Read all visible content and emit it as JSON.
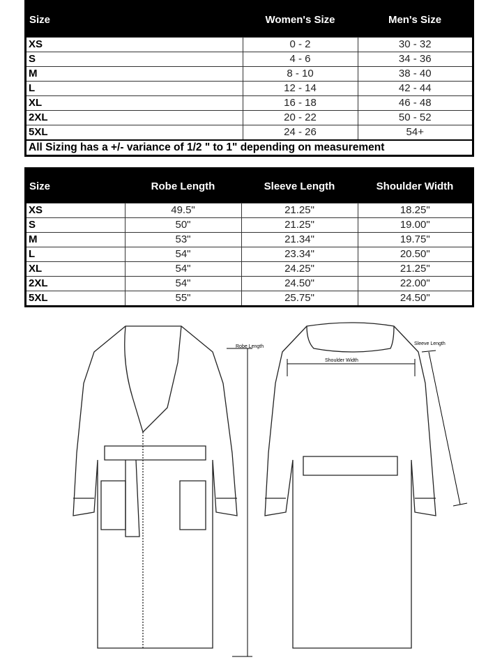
{
  "size_table": {
    "headers": [
      "Size",
      "Women's Size",
      "Men's Size"
    ],
    "rows": [
      [
        "XS",
        "0 - 2",
        "30 - 32"
      ],
      [
        "S",
        "4 - 6",
        "34 - 36"
      ],
      [
        "M",
        "8 - 10",
        "38 - 40"
      ],
      [
        "L",
        "12 - 14",
        "42 - 44"
      ],
      [
        "XL",
        "16 - 18",
        "46 - 48"
      ],
      [
        "2XL",
        "20 - 22",
        "50 - 52"
      ],
      [
        "5XL",
        "24 - 26",
        "54+"
      ]
    ],
    "note": "All Sizing has a +/- variance of  1/2 \" to 1\" depending on measurement"
  },
  "measure_table": {
    "headers": [
      "Size",
      "Robe Length",
      "Sleeve Length",
      "Shoulder Width"
    ],
    "rows": [
      [
        "XS",
        "49.5\"",
        "21.25\"",
        "18.25\""
      ],
      [
        "S",
        "50\"",
        "21.25\"",
        "19.00\""
      ],
      [
        "M",
        "53\"",
        "21.34\"",
        "19.75\""
      ],
      [
        "L",
        "54\"",
        "23.34\"",
        "20.50\""
      ],
      [
        "XL",
        "54\"",
        "24.25\"",
        "21.25\""
      ],
      [
        "2XL",
        "54\"",
        "24.50\"",
        "22.00\""
      ],
      [
        "5XL",
        "55\"",
        "25.75\"",
        "24.50\""
      ]
    ]
  },
  "diagram": {
    "robe_length_label": "Robe Length",
    "shoulder_width_label": "Shoulder Width",
    "sleeve_length_label": "Sleeve Length"
  }
}
